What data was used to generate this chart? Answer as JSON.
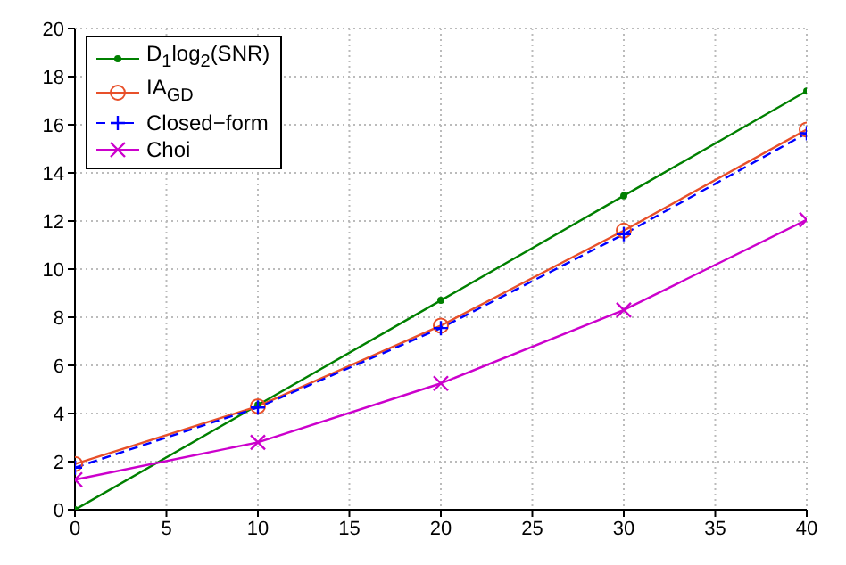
{
  "chart_data": {
    "type": "line",
    "x": [
      0,
      10,
      20,
      30,
      40
    ],
    "xlim": [
      0,
      40
    ],
    "xticks": [
      0,
      5,
      10,
      15,
      20,
      25,
      30,
      35,
      40
    ],
    "ylim": [
      0,
      20
    ],
    "yticks": [
      0,
      2,
      4,
      6,
      8,
      10,
      12,
      14,
      16,
      18,
      20
    ],
    "grid": true,
    "legend": "top left",
    "series": [
      {
        "name": "D$_{1}$log$_{2}$(SNR)",
        "color": "#008000",
        "marker": "circle",
        "line_style": "solid",
        "values": [
          0,
          4.35,
          8.7,
          13.05,
          17.4
        ]
      },
      {
        "name": "IA$_{GD}$",
        "color": "#e8502a",
        "marker": "circle",
        "line_style": "solid",
        "values": [
          1.9,
          4.3,
          7.65,
          11.6,
          15.8
        ]
      },
      {
        "name": "Closed−form",
        "color": "#0000ff",
        "marker": "cross",
        "line_style": "dashed",
        "values": [
          1.75,
          4.25,
          7.55,
          11.45,
          15.65
        ]
      },
      {
        "name": "Choi",
        "color": "#cc00cc",
        "marker": "x",
        "line_style": "solid",
        "values": [
          1.25,
          2.8,
          5.25,
          8.3,
          12.05
        ]
      }
    ]
  }
}
